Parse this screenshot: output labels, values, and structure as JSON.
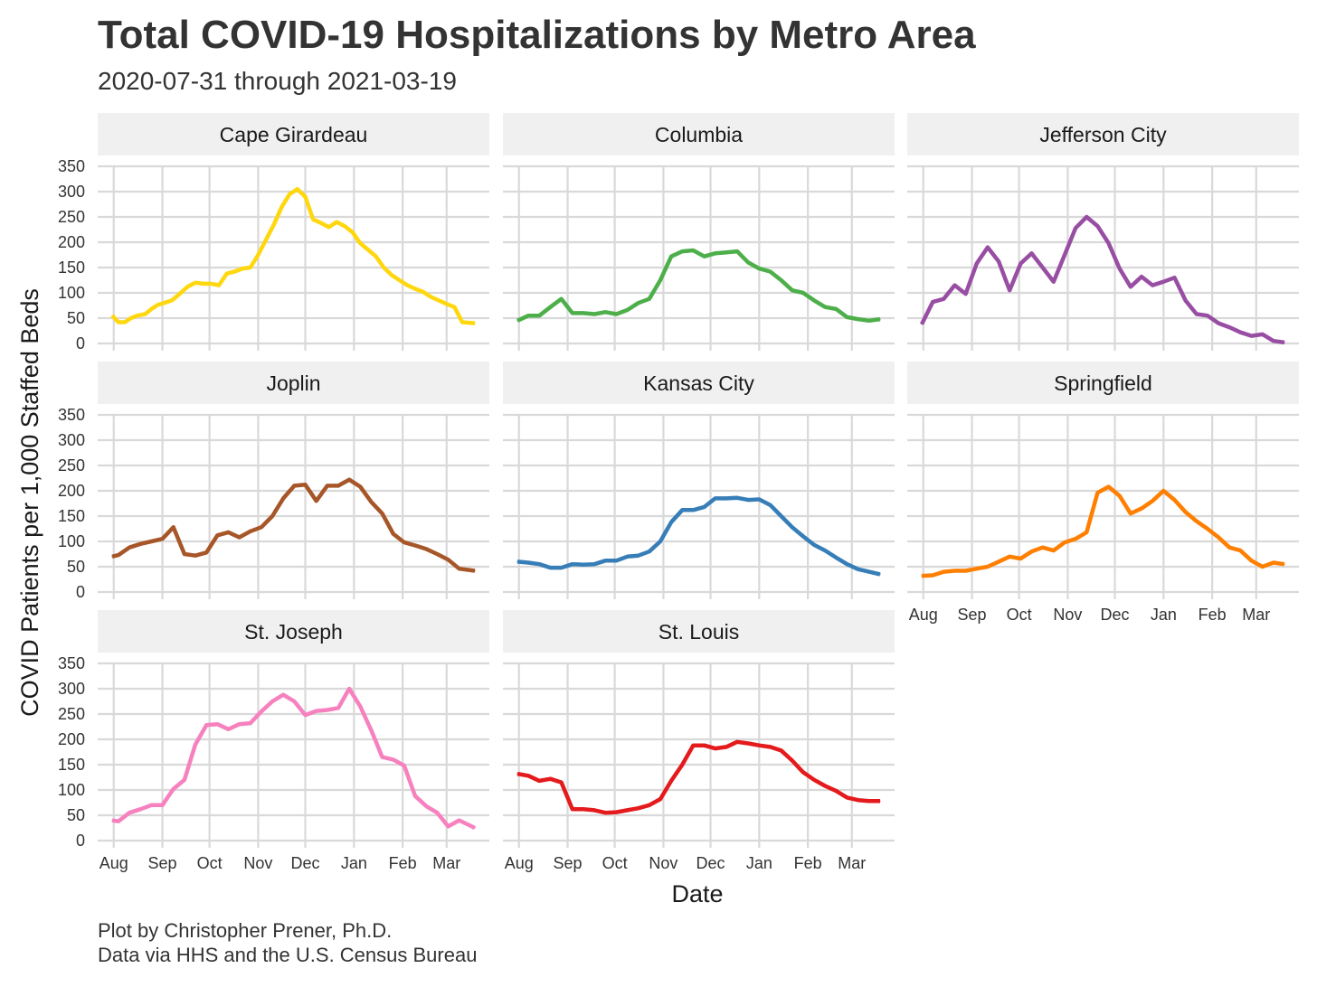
{
  "title": "Total COVID-19 Hospitalizations by Metro Area",
  "subtitle": "2020-07-31 through 2021-03-19",
  "caption": {
    "line1": "Plot by Christopher Prener, Ph.D.",
    "line2": "Data via HHS and the U.S. Census Bureau"
  },
  "chart_data": {
    "type": "line",
    "xlabel": "Date",
    "ylabel": "COVID Patients per 1,000 Staffed Beds",
    "x_range": [
      "2020-07-31",
      "2021-03-19"
    ],
    "ylim": [
      0,
      350
    ],
    "y_ticks": [
      0,
      50,
      100,
      150,
      200,
      250,
      300,
      350
    ],
    "x_ticks": [
      {
        "label": "Aug",
        "date": "2020-08-01"
      },
      {
        "label": "Sep",
        "date": "2020-09-01"
      },
      {
        "label": "Oct",
        "date": "2020-10-01"
      },
      {
        "label": "Nov",
        "date": "2020-11-01"
      },
      {
        "label": "Dec",
        "date": "2020-12-01"
      },
      {
        "label": "Jan",
        "date": "2021-01-01"
      },
      {
        "label": "Feb",
        "date": "2021-02-01"
      },
      {
        "label": "Mar",
        "date": "2021-03-01"
      }
    ],
    "grid": true,
    "legend": "none",
    "facets": [
      {
        "name": "Cape Girardeau",
        "color": "#FFD70F",
        "x": [
          "2020-07-31",
          "2020-08-04",
          "2020-08-08",
          "2020-08-12",
          "2020-08-16",
          "2020-08-21",
          "2020-08-25",
          "2020-08-29",
          "2020-09-02",
          "2020-09-07",
          "2020-09-12",
          "2020-09-17",
          "2020-09-22",
          "2020-09-27",
          "2020-10-02",
          "2020-10-07",
          "2020-10-12",
          "2020-10-17",
          "2020-10-22",
          "2020-10-27",
          "2020-11-01",
          "2020-11-06",
          "2020-11-11",
          "2020-11-16",
          "2020-11-21",
          "2020-11-26",
          "2020-12-01",
          "2020-12-06",
          "2020-12-11",
          "2020-12-16",
          "2020-12-21",
          "2020-12-26",
          "2020-12-31",
          "2021-01-05",
          "2021-01-10",
          "2021-01-15",
          "2021-01-20",
          "2021-01-25",
          "2021-01-30",
          "2021-02-04",
          "2021-02-09",
          "2021-02-14",
          "2021-02-19",
          "2021-02-24",
          "2021-03-01",
          "2021-03-06",
          "2021-03-11",
          "2021-03-19"
        ],
        "y": [
          55,
          42,
          42,
          50,
          55,
          58,
          68,
          76,
          80,
          85,
          98,
          112,
          120,
          118,
          118,
          115,
          138,
          142,
          148,
          150,
          175,
          205,
          235,
          270,
          295,
          305,
          290,
          245,
          238,
          230,
          240,
          232,
          220,
          198,
          185,
          172,
          150,
          135,
          125,
          115,
          108,
          102,
          92,
          85,
          78,
          72,
          42,
          40
        ]
      },
      {
        "name": "Columbia",
        "color": "#4DAF4A",
        "x": [
          "2020-07-31",
          "2020-08-07",
          "2020-08-14",
          "2020-08-21",
          "2020-08-28",
          "2020-09-04",
          "2020-09-11",
          "2020-09-18",
          "2020-09-25",
          "2020-10-02",
          "2020-10-09",
          "2020-10-16",
          "2020-10-23",
          "2020-10-30",
          "2020-11-06",
          "2020-11-13",
          "2020-11-20",
          "2020-11-27",
          "2020-12-04",
          "2020-12-11",
          "2020-12-18",
          "2020-12-25",
          "2021-01-01",
          "2021-01-08",
          "2021-01-15",
          "2021-01-22",
          "2021-01-29",
          "2021-02-05",
          "2021-02-12",
          "2021-02-19",
          "2021-02-26",
          "2021-03-05",
          "2021-03-12",
          "2021-03-19"
        ],
        "y": [
          45,
          55,
          55,
          72,
          88,
          60,
          60,
          58,
          62,
          58,
          66,
          80,
          88,
          125,
          172,
          182,
          184,
          172,
          178,
          180,
          182,
          160,
          148,
          142,
          125,
          105,
          100,
          85,
          72,
          68,
          52,
          48,
          45,
          48
        ]
      },
      {
        "name": "Jefferson City",
        "color": "#984EA3",
        "x": [
          "2020-07-31",
          "2020-08-07",
          "2020-08-14",
          "2020-08-21",
          "2020-08-28",
          "2020-09-04",
          "2020-09-11",
          "2020-09-18",
          "2020-09-25",
          "2020-10-02",
          "2020-10-09",
          "2020-10-16",
          "2020-10-23",
          "2020-10-30",
          "2020-11-06",
          "2020-11-13",
          "2020-11-20",
          "2020-11-27",
          "2020-12-04",
          "2020-12-11",
          "2020-12-18",
          "2020-12-25",
          "2021-01-01",
          "2021-01-08",
          "2021-01-15",
          "2021-01-22",
          "2021-01-29",
          "2021-02-05",
          "2021-02-12",
          "2021-02-19",
          "2021-02-26",
          "2021-03-05",
          "2021-03-12",
          "2021-03-19"
        ],
        "y": [
          38,
          82,
          88,
          115,
          98,
          158,
          190,
          162,
          105,
          158,
          178,
          150,
          122,
          175,
          228,
          250,
          232,
          198,
          148,
          112,
          132,
          115,
          122,
          130,
          85,
          58,
          55,
          40,
          32,
          22,
          15,
          18,
          5,
          2
        ]
      },
      {
        "name": "Joplin",
        "color": "#A65628",
        "x": [
          "2020-07-31",
          "2020-08-04",
          "2020-08-11",
          "2020-08-18",
          "2020-08-25",
          "2020-09-01",
          "2020-09-08",
          "2020-09-15",
          "2020-09-22",
          "2020-09-29",
          "2020-10-06",
          "2020-10-13",
          "2020-10-20",
          "2020-10-27",
          "2020-11-03",
          "2020-11-10",
          "2020-11-17",
          "2020-11-24",
          "2020-12-01",
          "2020-12-08",
          "2020-12-15",
          "2020-12-22",
          "2020-12-29",
          "2021-01-05",
          "2021-01-12",
          "2021-01-19",
          "2021-01-26",
          "2021-02-02",
          "2021-02-09",
          "2021-02-16",
          "2021-02-23",
          "2021-03-02",
          "2021-03-09",
          "2021-03-19"
        ],
        "y": [
          70,
          73,
          88,
          95,
          100,
          105,
          128,
          75,
          72,
          78,
          112,
          118,
          108,
          120,
          128,
          150,
          185,
          210,
          212,
          180,
          210,
          210,
          222,
          208,
          178,
          155,
          115,
          98,
          92,
          85,
          75,
          64,
          46,
          42
        ]
      },
      {
        "name": "Kansas City",
        "color": "#377EB8",
        "x": [
          "2020-07-31",
          "2020-08-07",
          "2020-08-14",
          "2020-08-21",
          "2020-08-28",
          "2020-09-04",
          "2020-09-11",
          "2020-09-18",
          "2020-09-25",
          "2020-10-02",
          "2020-10-09",
          "2020-10-16",
          "2020-10-23",
          "2020-10-30",
          "2020-11-06",
          "2020-11-13",
          "2020-11-20",
          "2020-11-27",
          "2020-12-04",
          "2020-12-11",
          "2020-12-18",
          "2020-12-25",
          "2021-01-01",
          "2021-01-08",
          "2021-01-15",
          "2021-01-22",
          "2021-01-29",
          "2021-02-05",
          "2021-02-12",
          "2021-02-19",
          "2021-02-26",
          "2021-03-05",
          "2021-03-12",
          "2021-03-19"
        ],
        "y": [
          60,
          58,
          55,
          48,
          48,
          55,
          54,
          55,
          62,
          62,
          70,
          72,
          80,
          100,
          138,
          162,
          162,
          168,
          185,
          185,
          186,
          182,
          183,
          172,
          150,
          128,
          110,
          93,
          82,
          68,
          55,
          45,
          40,
          35
        ]
      },
      {
        "name": "Springfield",
        "color": "#FF7F00",
        "x": [
          "2020-07-31",
          "2020-08-07",
          "2020-08-14",
          "2020-08-21",
          "2020-08-28",
          "2020-09-04",
          "2020-09-11",
          "2020-09-18",
          "2020-09-25",
          "2020-10-02",
          "2020-10-09",
          "2020-10-16",
          "2020-10-23",
          "2020-10-30",
          "2020-11-06",
          "2020-11-13",
          "2020-11-20",
          "2020-11-27",
          "2020-12-04",
          "2020-12-11",
          "2020-12-18",
          "2020-12-25",
          "2021-01-01",
          "2021-01-08",
          "2021-01-15",
          "2021-01-22",
          "2021-01-29",
          "2021-02-05",
          "2021-02-12",
          "2021-02-19",
          "2021-02-26",
          "2021-03-05",
          "2021-03-12",
          "2021-03-19"
        ],
        "y": [
          32,
          33,
          40,
          42,
          42,
          46,
          50,
          60,
          70,
          66,
          80,
          88,
          82,
          98,
          105,
          118,
          196,
          208,
          190,
          155,
          165,
          180,
          200,
          182,
          158,
          140,
          125,
          108,
          88,
          82,
          62,
          50,
          58,
          55
        ]
      },
      {
        "name": "St. Joseph",
        "color": "#F781BF",
        "x": [
          "2020-07-31",
          "2020-08-04",
          "2020-08-11",
          "2020-08-18",
          "2020-08-25",
          "2020-09-01",
          "2020-09-08",
          "2020-09-15",
          "2020-09-22",
          "2020-09-29",
          "2020-10-06",
          "2020-10-13",
          "2020-10-20",
          "2020-10-27",
          "2020-11-03",
          "2020-11-10",
          "2020-11-17",
          "2020-11-24",
          "2020-12-01",
          "2020-12-08",
          "2020-12-15",
          "2020-12-22",
          "2020-12-29",
          "2021-01-05",
          "2021-01-12",
          "2021-01-19",
          "2021-01-26",
          "2021-02-02",
          "2021-02-09",
          "2021-02-16",
          "2021-02-23",
          "2021-03-02",
          "2021-03-09",
          "2021-03-19"
        ],
        "y": [
          40,
          38,
          55,
          62,
          70,
          70,
          102,
          120,
          190,
          228,
          230,
          220,
          230,
          232,
          255,
          275,
          288,
          275,
          248,
          256,
          258,
          262,
          300,
          265,
          218,
          165,
          160,
          148,
          88,
          68,
          55,
          28,
          40,
          25
        ]
      },
      {
        "name": "St. Louis",
        "color": "#E41A1C",
        "x": [
          "2020-07-31",
          "2020-08-07",
          "2020-08-14",
          "2020-08-21",
          "2020-08-28",
          "2020-09-04",
          "2020-09-11",
          "2020-09-18",
          "2020-09-25",
          "2020-10-02",
          "2020-10-09",
          "2020-10-16",
          "2020-10-23",
          "2020-10-30",
          "2020-11-06",
          "2020-11-13",
          "2020-11-20",
          "2020-11-27",
          "2020-12-04",
          "2020-12-11",
          "2020-12-18",
          "2020-12-25",
          "2021-01-01",
          "2021-01-08",
          "2021-01-15",
          "2021-01-22",
          "2021-01-29",
          "2021-02-05",
          "2021-02-12",
          "2021-02-19",
          "2021-02-26",
          "2021-03-05",
          "2021-03-12",
          "2021-03-19"
        ],
        "y": [
          132,
          128,
          118,
          122,
          115,
          62,
          62,
          60,
          55,
          56,
          60,
          64,
          70,
          82,
          118,
          150,
          188,
          188,
          182,
          185,
          195,
          192,
          188,
          185,
          178,
          158,
          135,
          120,
          108,
          98,
          85,
          80,
          78,
          78
        ]
      }
    ]
  }
}
